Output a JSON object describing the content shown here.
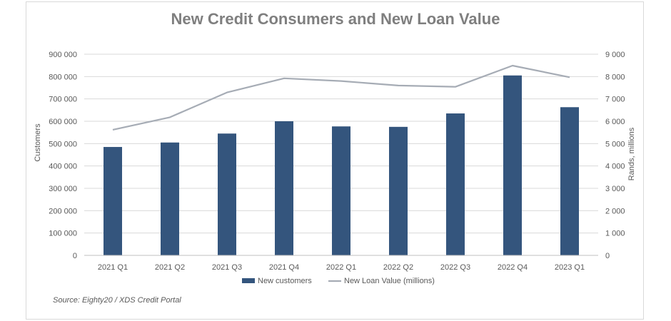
{
  "chart_data": {
    "type": "bar",
    "title": "New Credit Consumers and New Loan Value",
    "categories": [
      "2021 Q1",
      "2021 Q2",
      "2021 Q3",
      "2021 Q4",
      "2022 Q1",
      "2022 Q2",
      "2022 Q3",
      "2022 Q4",
      "2023 Q1"
    ],
    "series": [
      {
        "name": "New customers",
        "type": "bar",
        "axis": "left",
        "color": "#34557d",
        "values": [
          485000,
          505000,
          545000,
          600000,
          577000,
          575000,
          635000,
          805000,
          663000
        ]
      },
      {
        "name": "New Loan Value (millions)",
        "type": "line",
        "axis": "right",
        "color": "#a6acb5",
        "values": [
          5620,
          6180,
          7290,
          7920,
          7800,
          7600,
          7540,
          8490,
          7970
        ]
      }
    ],
    "ylabel_left": "Customers",
    "ylabel_right": "Rands, millions",
    "ylim_left": [
      0,
      900000
    ],
    "ylim_right": [
      0,
      9000
    ],
    "yticks_left": [
      "0",
      "100 000",
      "200 000",
      "300 000",
      "400 000",
      "500 000",
      "600 000",
      "700 000",
      "800 000",
      "900 000"
    ],
    "yticks_right": [
      "0",
      "1 000",
      "2 000",
      "3 000",
      "4 000",
      "5 000",
      "6 000",
      "7 000",
      "8 000",
      "9 000"
    ],
    "grid": true,
    "legend_position": "bottom",
    "source": "Source: Eighty20 / XDS Credit Portal"
  }
}
